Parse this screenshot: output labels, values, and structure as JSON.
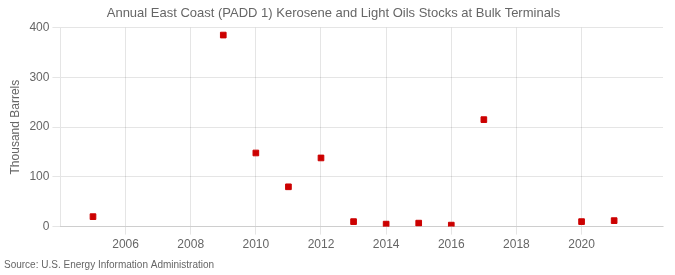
{
  "chart_data": {
    "type": "scatter",
    "title": "Annual East Coast (PADD 1) Kerosene and Light Oils Stocks at Bulk Terminals",
    "ylabel": "Thousand Barrels",
    "annotations": [
      "Source: U.S. Energy Information Administration"
    ],
    "x": [
      2005,
      2009,
      2010,
      2011,
      2012,
      2013,
      2014,
      2015,
      2016,
      2017,
      2020,
      2021
    ],
    "values": [
      20,
      385,
      148,
      80,
      138,
      10,
      5,
      7,
      3,
      215,
      10,
      12
    ],
    "color": "#cc0000",
    "marker": "square",
    "xlim": [
      2004.0,
      2022.5
    ],
    "xticks": [
      2006,
      2008,
      2010,
      2012,
      2014,
      2016,
      2018,
      2020
    ],
    "ylim": [
      0,
      400
    ],
    "yticks": [
      0,
      100,
      200,
      300,
      400
    ],
    "grid": true
  }
}
